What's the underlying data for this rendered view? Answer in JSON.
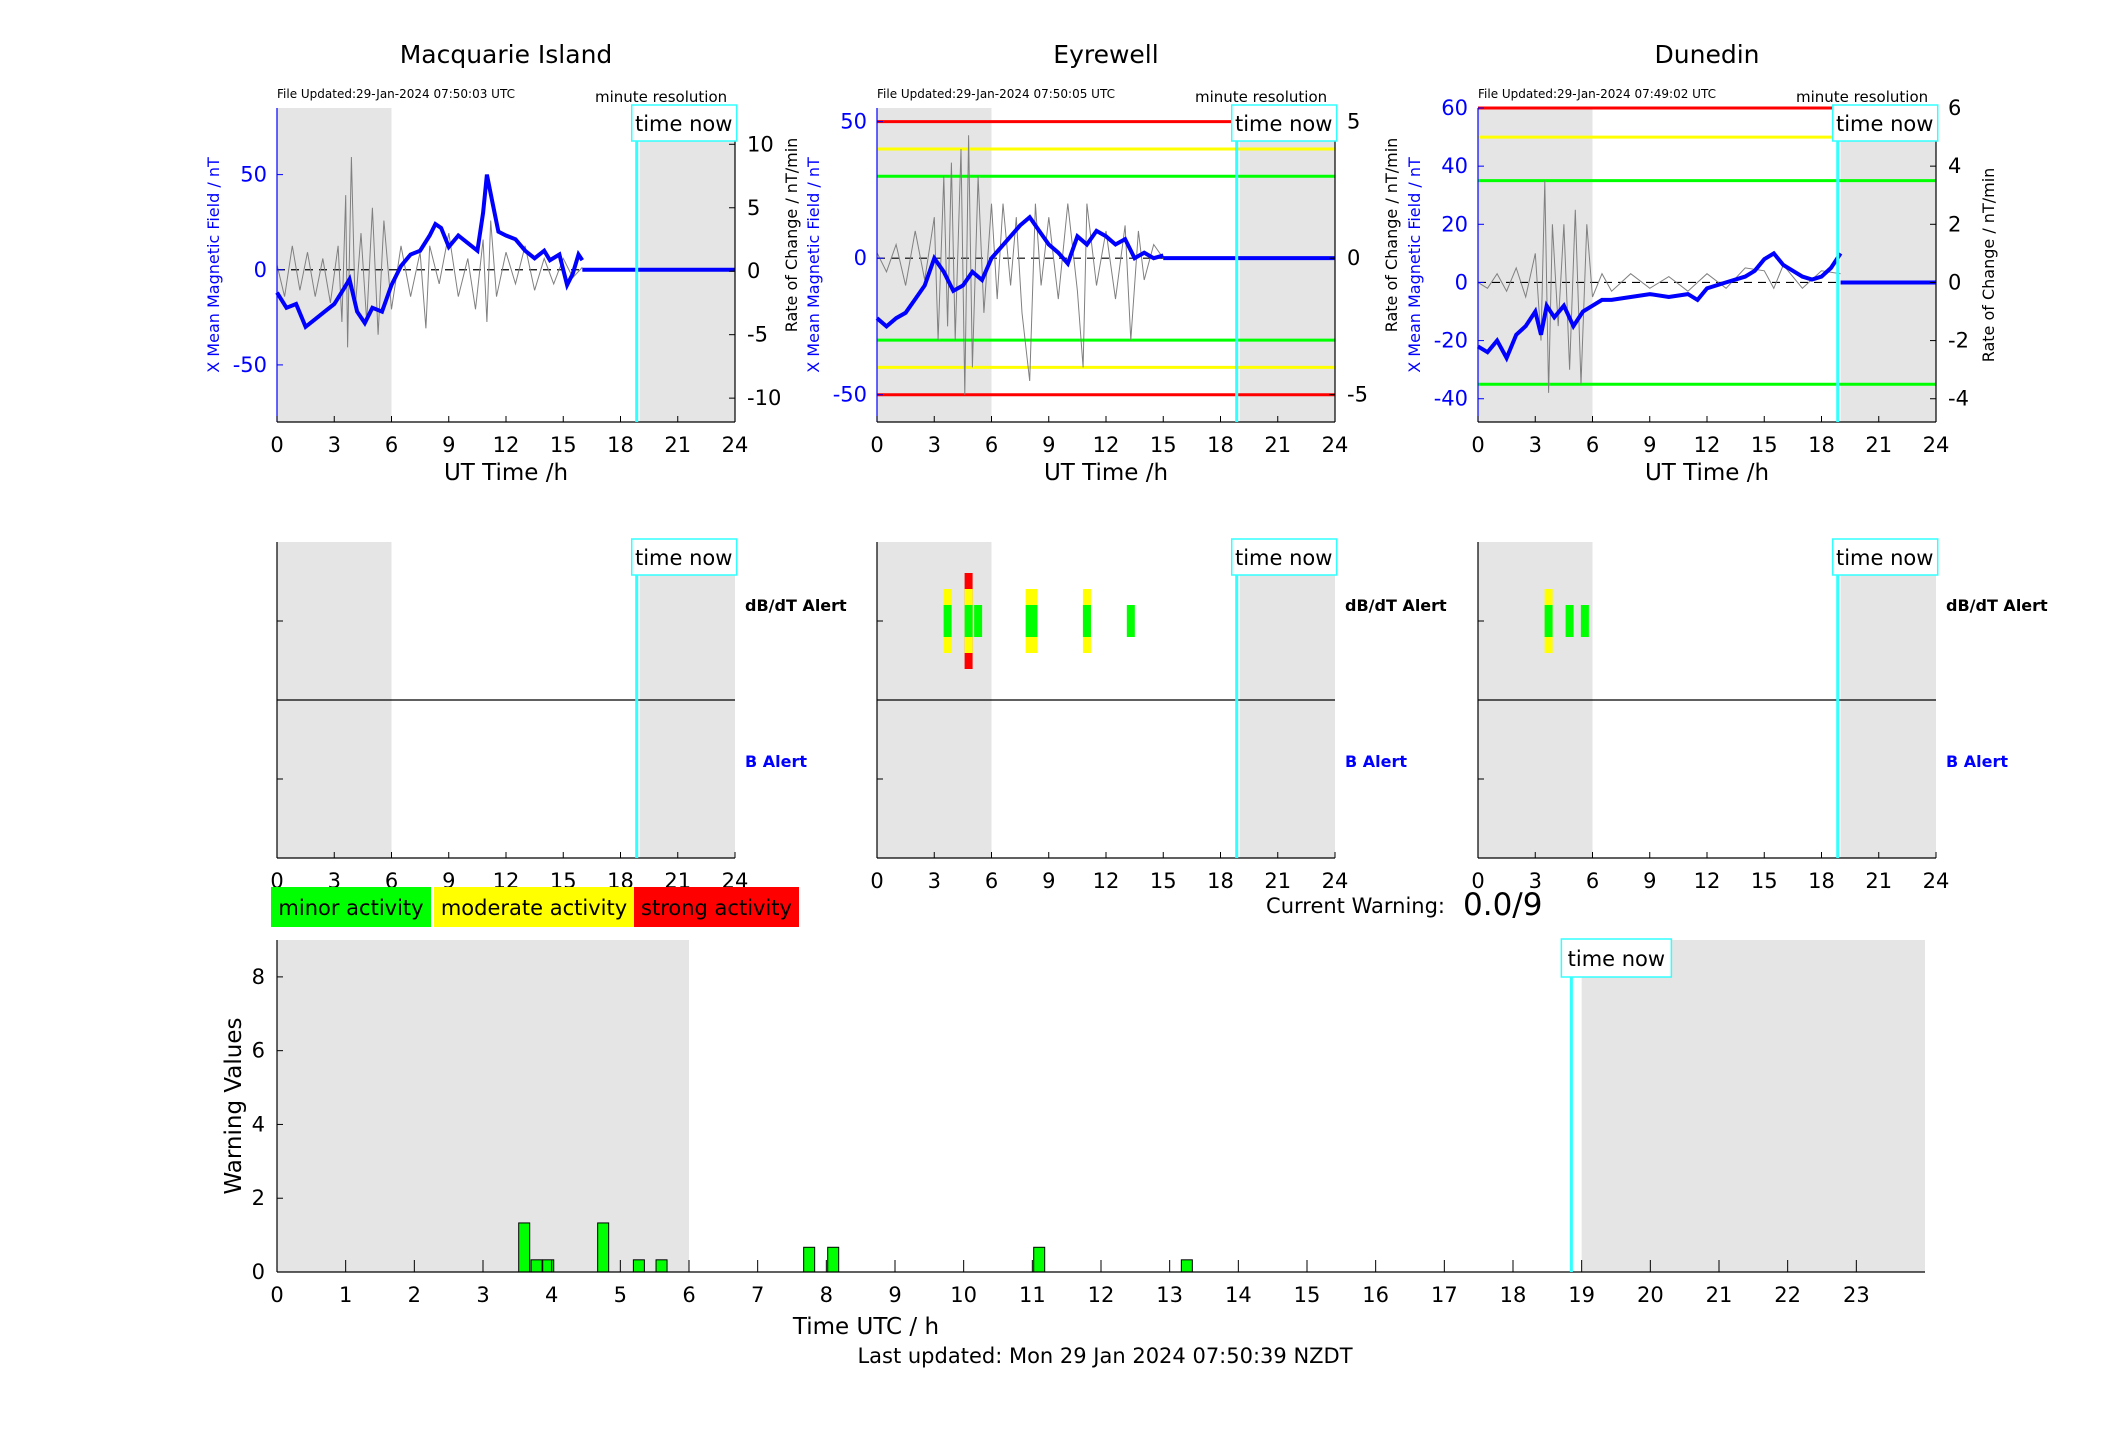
{
  "colors": {
    "minor": "#00ff00",
    "moderate": "#ffff00",
    "strong": "#ff0000",
    "time_now": "#33ffff",
    "field_trace": "#0000ff",
    "rate_trace": "#808080",
    "night_shade": "#e5e5e5"
  },
  "common": {
    "time_now_label": "time now",
    "time_now_hour": 18.85,
    "resolution_label": "minute resolution",
    "x_label": "UT Time /h",
    "y_left_label": "X Mean Magnetic Field / nT",
    "y_right_label": "Rate of Change / nT/min",
    "dbdt_alert_label": "dB/dT Alert",
    "b_alert_label": "B Alert",
    "x_ticks": [
      0,
      3,
      6,
      9,
      12,
      15,
      18,
      21,
      24
    ]
  },
  "stations": [
    {
      "name": "Macquarie Island",
      "file_updated": "File Updated:29-Jan-2024 07:50:03 UTC",
      "left_ylim": [
        -80,
        85
      ],
      "right_ylim": [
        -11.88,
        12.86
      ],
      "left_ticks": [
        "-50",
        "0",
        "50"
      ],
      "left_tick_values": [
        -50,
        0,
        50
      ],
      "right_ticks": [
        "-10",
        "-5",
        "0",
        "5",
        "10"
      ],
      "right_tick_values": [
        -10,
        -5,
        0,
        5,
        10
      ],
      "shade_spans": [
        [
          0,
          6
        ],
        [
          19,
          24
        ]
      ],
      "threshold_lines": [],
      "data_end_hour": 16.0,
      "field_points": [
        [
          0,
          -12
        ],
        [
          0.5,
          -20
        ],
        [
          1,
          -18
        ],
        [
          1.5,
          -30
        ],
        [
          2,
          -26
        ],
        [
          2.5,
          -22
        ],
        [
          3,
          -18
        ],
        [
          3.5,
          -10
        ],
        [
          3.8,
          -5
        ],
        [
          4.2,
          -22
        ],
        [
          4.6,
          -28
        ],
        [
          5,
          -20
        ],
        [
          5.5,
          -22
        ],
        [
          6,
          -8
        ],
        [
          6.5,
          2
        ],
        [
          7,
          8
        ],
        [
          7.5,
          10
        ],
        [
          8,
          18
        ],
        [
          8.3,
          24
        ],
        [
          8.6,
          22
        ],
        [
          9,
          12
        ],
        [
          9.5,
          18
        ],
        [
          10,
          14
        ],
        [
          10.5,
          10
        ],
        [
          10.8,
          30
        ],
        [
          11,
          50
        ],
        [
          11.3,
          35
        ],
        [
          11.6,
          20
        ],
        [
          12,
          18
        ],
        [
          12.5,
          16
        ],
        [
          13,
          10
        ],
        [
          13.5,
          6
        ],
        [
          14,
          10
        ],
        [
          14.3,
          5
        ],
        [
          14.8,
          8
        ],
        [
          15.2,
          -8
        ],
        [
          15.5,
          -2
        ],
        [
          15.8,
          8
        ],
        [
          16,
          5
        ]
      ],
      "rate_points": [
        [
          0,
          0.5
        ],
        [
          0.4,
          -2
        ],
        [
          0.8,
          2
        ],
        [
          1.2,
          -1.5
        ],
        [
          1.6,
          1.5
        ],
        [
          2,
          -2
        ],
        [
          2.4,
          1
        ],
        [
          2.8,
          -2.5
        ],
        [
          3.2,
          2
        ],
        [
          3.4,
          -4
        ],
        [
          3.6,
          6
        ],
        [
          3.7,
          -6
        ],
        [
          3.9,
          9
        ],
        [
          4.1,
          -3
        ],
        [
          4.4,
          3
        ],
        [
          4.7,
          -4
        ],
        [
          5,
          5
        ],
        [
          5.3,
          -5
        ],
        [
          5.6,
          4
        ],
        [
          6,
          -3
        ],
        [
          6.5,
          2
        ],
        [
          7,
          -2
        ],
        [
          7.5,
          1.5
        ],
        [
          7.8,
          -4.5
        ],
        [
          8,
          2
        ],
        [
          8.5,
          -1
        ],
        [
          9,
          3
        ],
        [
          9.5,
          -2
        ],
        [
          10,
          1
        ],
        [
          10.4,
          -3
        ],
        [
          10.8,
          2.5
        ],
        [
          11,
          -4
        ],
        [
          11.2,
          4
        ],
        [
          11.5,
          -2
        ],
        [
          12,
          1.5
        ],
        [
          12.5,
          -1
        ],
        [
          13,
          2
        ],
        [
          13.5,
          -1.5
        ],
        [
          14,
          1
        ],
        [
          14.5,
          -1
        ],
        [
          15,
          1
        ],
        [
          15.5,
          -0.5
        ],
        [
          16,
          0.3
        ]
      ],
      "dbdt_alerts": [],
      "b_alerts": []
    },
    {
      "name": "Eyrewell",
      "file_updated": "File Updated:29-Jan-2024 07:50:05 UTC",
      "left_ylim": [
        -60,
        55
      ],
      "right_ylim": [
        -6,
        5.5
      ],
      "left_ticks": [
        "-50",
        "0",
        "50"
      ],
      "left_tick_values": [
        -50,
        0,
        50
      ],
      "right_ticks": [
        "-5",
        "0",
        "5"
      ],
      "right_tick_values": [
        -5,
        0,
        5
      ],
      "shade_spans": [
        [
          0,
          6
        ],
        [
          19,
          24
        ]
      ],
      "threshold_lines": [
        {
          "value": 50,
          "level": "strong"
        },
        {
          "value": 40,
          "level": "moderate"
        },
        {
          "value": 30,
          "level": "minor"
        },
        {
          "value": -30,
          "level": "minor"
        },
        {
          "value": -40,
          "level": "moderate"
        },
        {
          "value": -50,
          "level": "strong"
        }
      ],
      "data_end_hour": 15.0,
      "field_points": [
        [
          0,
          -22
        ],
        [
          0.5,
          -25
        ],
        [
          1,
          -22
        ],
        [
          1.5,
          -20
        ],
        [
          2,
          -15
        ],
        [
          2.5,
          -10
        ],
        [
          3,
          0
        ],
        [
          3.5,
          -5
        ],
        [
          4,
          -12
        ],
        [
          4.5,
          -10
        ],
        [
          5,
          -5
        ],
        [
          5.5,
          -8
        ],
        [
          6,
          0
        ],
        [
          6.5,
          4
        ],
        [
          7,
          8
        ],
        [
          7.5,
          12
        ],
        [
          8,
          15
        ],
        [
          8.5,
          10
        ],
        [
          9,
          5
        ],
        [
          9.5,
          2
        ],
        [
          10,
          -2
        ],
        [
          10.5,
          8
        ],
        [
          11,
          5
        ],
        [
          11.5,
          10
        ],
        [
          12,
          8
        ],
        [
          12.5,
          5
        ],
        [
          13,
          7
        ],
        [
          13.5,
          0
        ],
        [
          14,
          2
        ],
        [
          14.5,
          0
        ],
        [
          15,
          1
        ]
      ],
      "rate_points": [
        [
          0,
          0.2
        ],
        [
          0.5,
          -0.5
        ],
        [
          1,
          0.5
        ],
        [
          1.5,
          -1
        ],
        [
          2,
          1
        ],
        [
          2.5,
          -0.8
        ],
        [
          3,
          1.5
        ],
        [
          3.2,
          -3
        ],
        [
          3.5,
          3
        ],
        [
          3.7,
          -2.5
        ],
        [
          3.9,
          3.5
        ],
        [
          4.1,
          -3
        ],
        [
          4.4,
          4
        ],
        [
          4.6,
          -5
        ],
        [
          4.8,
          4.5
        ],
        [
          5,
          -4
        ],
        [
          5.3,
          3
        ],
        [
          5.6,
          -2
        ],
        [
          6,
          2
        ],
        [
          6.3,
          -1.5
        ],
        [
          6.6,
          2
        ],
        [
          7,
          -1
        ],
        [
          7.3,
          1.5
        ],
        [
          7.6,
          -2
        ],
        [
          8,
          -4.5
        ],
        [
          8.3,
          2
        ],
        [
          8.6,
          -1
        ],
        [
          9,
          1.5
        ],
        [
          9.5,
          -1.5
        ],
        [
          10,
          2
        ],
        [
          10.5,
          -1.2
        ],
        [
          10.8,
          -4
        ],
        [
          11,
          2
        ],
        [
          11.5,
          -1
        ],
        [
          12,
          1
        ],
        [
          12.5,
          -1.5
        ],
        [
          13,
          1.2
        ],
        [
          13.3,
          -3
        ],
        [
          13.7,
          1
        ],
        [
          14,
          -0.8
        ],
        [
          14.5,
          0.5
        ],
        [
          15,
          0
        ]
      ],
      "dbdt_alerts": [
        {
          "hour": 3.7,
          "levels": [
            "moderate",
            "minor"
          ]
        },
        {
          "hour": 4.8,
          "levels": [
            "strong",
            "moderate",
            "minor"
          ]
        },
        {
          "hour": 5.3,
          "levels": [
            "minor"
          ]
        },
        {
          "hour": 8.0,
          "levels": [
            "moderate",
            "minor"
          ]
        },
        {
          "hour": 8.2,
          "levels": [
            "moderate",
            "minor"
          ]
        },
        {
          "hour": 11.0,
          "levels": [
            "moderate",
            "minor"
          ]
        },
        {
          "hour": 13.3,
          "levels": [
            "minor"
          ]
        }
      ],
      "b_alerts": []
    },
    {
      "name": "Dunedin",
      "file_updated": "File Updated:29-Jan-2024 07:49:02 UTC",
      "left_ylim": [
        -48,
        60
      ],
      "right_ylim": [
        -4.8,
        6
      ],
      "left_ticks": [
        "-40",
        "-20",
        "0",
        "20",
        "40",
        "60"
      ],
      "left_tick_values": [
        -40,
        -20,
        0,
        20,
        40,
        60
      ],
      "right_ticks": [
        "-4",
        "-2",
        "0",
        "2",
        "4",
        "6"
      ],
      "right_tick_values": [
        -4,
        -2,
        0,
        2,
        4,
        6
      ],
      "shade_spans": [
        [
          0,
          6
        ],
        [
          19,
          24
        ]
      ],
      "threshold_lines": [
        {
          "value": 60,
          "level": "strong"
        },
        {
          "value": 50,
          "level": "moderate"
        },
        {
          "value": 35,
          "level": "minor"
        },
        {
          "value": -35,
          "level": "minor"
        }
      ],
      "data_end_hour": 19.0,
      "field_points": [
        [
          0,
          -22
        ],
        [
          0.5,
          -24
        ],
        [
          1,
          -20
        ],
        [
          1.5,
          -26
        ],
        [
          2,
          -18
        ],
        [
          2.5,
          -15
        ],
        [
          3,
          -10
        ],
        [
          3.3,
          -18
        ],
        [
          3.6,
          -8
        ],
        [
          4,
          -12
        ],
        [
          4.5,
          -8
        ],
        [
          5,
          -15
        ],
        [
          5.5,
          -10
        ],
        [
          6,
          -8
        ],
        [
          6.5,
          -6
        ],
        [
          7,
          -6
        ],
        [
          8,
          -5
        ],
        [
          9,
          -4
        ],
        [
          10,
          -5
        ],
        [
          11,
          -4
        ],
        [
          11.5,
          -6
        ],
        [
          12,
          -2
        ],
        [
          13,
          0
        ],
        [
          14,
          2
        ],
        [
          14.5,
          4
        ],
        [
          15,
          8
        ],
        [
          15.5,
          10
        ],
        [
          16,
          6
        ],
        [
          16.5,
          4
        ],
        [
          17,
          2
        ],
        [
          17.5,
          1
        ],
        [
          18,
          2
        ],
        [
          18.5,
          5
        ],
        [
          19,
          10
        ]
      ],
      "rate_points": [
        [
          0,
          0
        ],
        [
          0.5,
          -0.2
        ],
        [
          1,
          0.3
        ],
        [
          1.5,
          -0.3
        ],
        [
          2,
          0.5
        ],
        [
          2.5,
          -0.5
        ],
        [
          3,
          1
        ],
        [
          3.3,
          -2
        ],
        [
          3.5,
          3.5
        ],
        [
          3.7,
          -3.8
        ],
        [
          3.9,
          2
        ],
        [
          4.2,
          -1.5
        ],
        [
          4.5,
          2
        ],
        [
          4.8,
          -3
        ],
        [
          5.1,
          2.5
        ],
        [
          5.4,
          -3.5
        ],
        [
          5.7,
          2
        ],
        [
          6,
          -0.5
        ],
        [
          6.5,
          0.3
        ],
        [
          7,
          -0.3
        ],
        [
          8,
          0.3
        ],
        [
          9,
          -0.2
        ],
        [
          10,
          0.2
        ],
        [
          11,
          -0.3
        ],
        [
          12,
          0.3
        ],
        [
          13,
          -0.2
        ],
        [
          14,
          0.5
        ],
        [
          15,
          0.4
        ],
        [
          15.5,
          -0.2
        ],
        [
          16,
          0.6
        ],
        [
          17,
          -0.2
        ],
        [
          18,
          0.4
        ],
        [
          19,
          0.3
        ]
      ],
      "dbdt_alerts": [
        {
          "hour": 3.7,
          "levels": [
            "moderate",
            "minor"
          ]
        },
        {
          "hour": 4.8,
          "levels": [
            "minor"
          ]
        },
        {
          "hour": 5.6,
          "levels": [
            "minor"
          ]
        }
      ],
      "b_alerts": []
    }
  ],
  "legend": {
    "minor": "minor activity",
    "moderate": "moderate activity",
    "strong": "strong activity"
  },
  "current_warning": {
    "label": "Current Warning:",
    "value": "0.0/9"
  },
  "chart_data": {
    "type": "bar",
    "xlabel": "Time UTC / h",
    "ylabel": "Warning Values",
    "xlim": [
      0,
      24
    ],
    "ylim": [
      0,
      9
    ],
    "x_ticks": [
      0,
      1,
      2,
      3,
      4,
      5,
      6,
      7,
      8,
      9,
      10,
      11,
      12,
      13,
      14,
      15,
      16,
      17,
      18,
      19,
      20,
      21,
      22,
      23
    ],
    "y_ticks": [
      0,
      2,
      4,
      6,
      8
    ],
    "shade_spans": [
      [
        0,
        6
      ],
      [
        19,
        24
      ]
    ],
    "time_now_hour": 18.85,
    "bar_width_h": 0.16,
    "bars": [
      {
        "x": 3.6,
        "value": 1.33
      },
      {
        "x": 3.78,
        "value": 0.33
      },
      {
        "x": 3.95,
        "value": 0.33
      },
      {
        "x": 4.75,
        "value": 1.33
      },
      {
        "x": 5.27,
        "value": 0.33
      },
      {
        "x": 5.6,
        "value": 0.33
      },
      {
        "x": 7.75,
        "value": 0.67
      },
      {
        "x": 8.1,
        "value": 0.67
      },
      {
        "x": 11.1,
        "value": 0.67
      },
      {
        "x": 13.25,
        "value": 0.33
      }
    ]
  },
  "footer": {
    "last_updated": "Last updated: Mon 29 Jan 2024 07:50:39 NZDT"
  }
}
